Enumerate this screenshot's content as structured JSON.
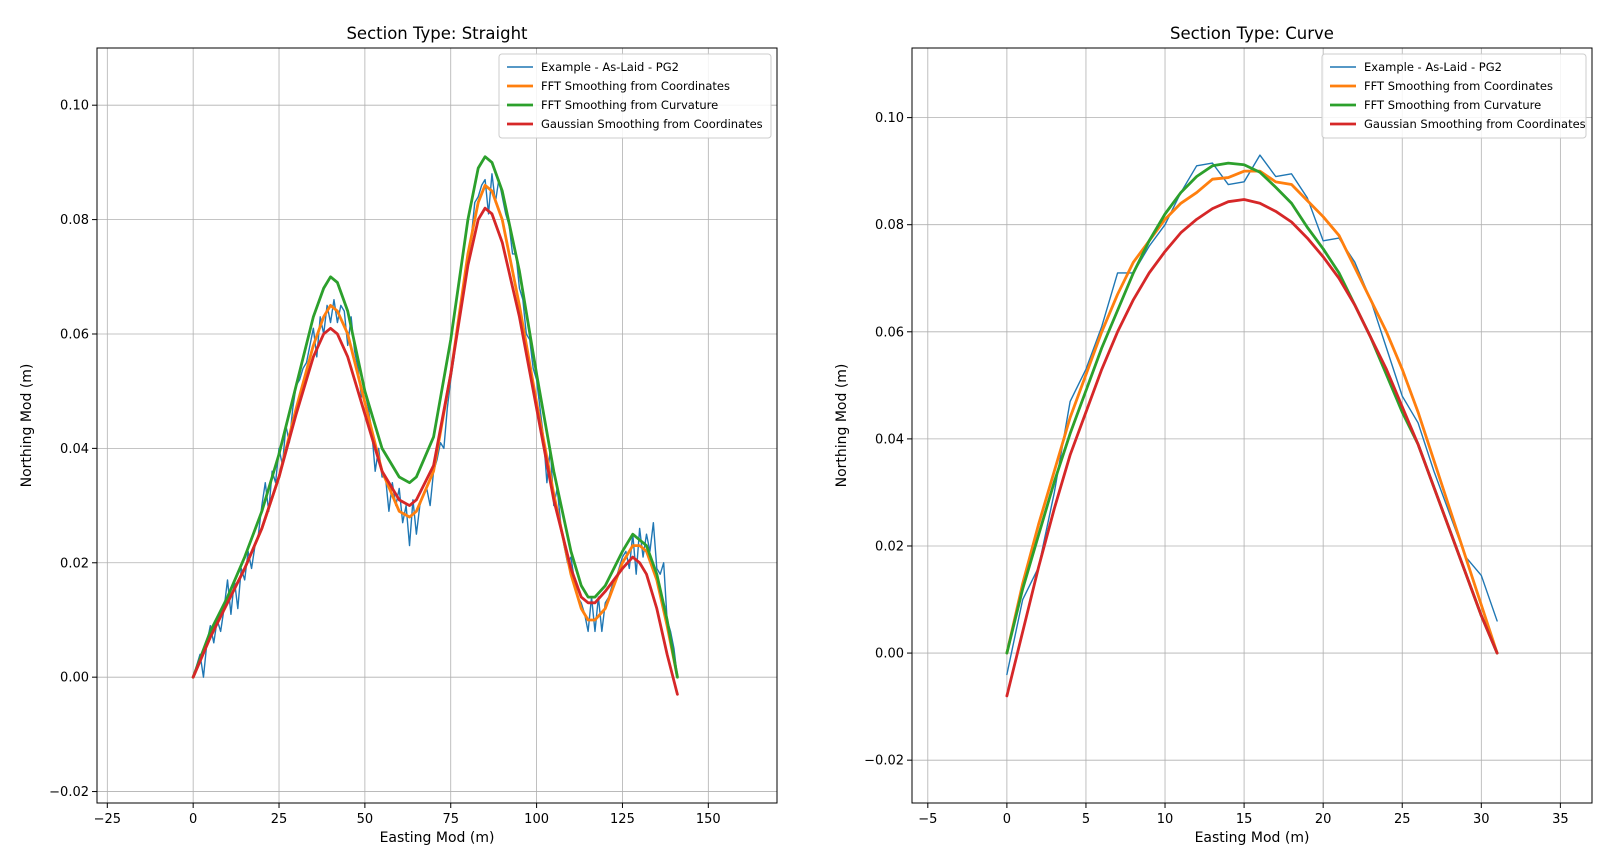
{
  "chart_data": [
    {
      "type": "line",
      "title": "Section Type: Straight",
      "xlabel": "Easting Mod (m)",
      "ylabel": "Northing Mod (m)",
      "xlim": [
        -28,
        170
      ],
      "ylim": [
        -0.022,
        0.11
      ],
      "xticks": [
        -25,
        0,
        25,
        50,
        75,
        100,
        125,
        150
      ],
      "xtick_labels": [
        "−25",
        "0",
        "25",
        "50",
        "75",
        "100",
        "125",
        "150"
      ],
      "yticks": [
        -0.02,
        0.0,
        0.02,
        0.04,
        0.06,
        0.08,
        0.1
      ],
      "ytick_labels": [
        "−0.02",
        "0.00",
        "0.02",
        "0.04",
        "0.06",
        "0.08",
        "0.10"
      ],
      "grid": true,
      "legend_position": "top-right",
      "series": [
        {
          "name": "Example - As-Laid - PG2",
          "color": "#1f77b4",
          "width": 1,
          "x": [
            0,
            2,
            3,
            4,
            5,
            6,
            7,
            8,
            9,
            10,
            11,
            12,
            13,
            14,
            15,
            16,
            17,
            18,
            19,
            20,
            21,
            22,
            23,
            24,
            25,
            26,
            27,
            28,
            29,
            30,
            31,
            32,
            33,
            34,
            35,
            36,
            37,
            38,
            39,
            40,
            41,
            42,
            43,
            44,
            45,
            46,
            47,
            48,
            49,
            50,
            51,
            52,
            53,
            54,
            55,
            56,
            57,
            58,
            59,
            60,
            61,
            62,
            63,
            64,
            65,
            66,
            67,
            68,
            69,
            70,
            71,
            72,
            73,
            74,
            75,
            76,
            77,
            78,
            79,
            80,
            81,
            82,
            83,
            84,
            85,
            86,
            87,
            88,
            89,
            90,
            91,
            92,
            93,
            94,
            95,
            96,
            97,
            98,
            99,
            100,
            101,
            102,
            103,
            104,
            105,
            106,
            107,
            108,
            109,
            110,
            111,
            112,
            113,
            114,
            115,
            116,
            117,
            118,
            119,
            120,
            121,
            122,
            123,
            124,
            125,
            126,
            127,
            128,
            129,
            130,
            131,
            132,
            133,
            134,
            135,
            136,
            137,
            138,
            139,
            140,
            141
          ],
          "y": [
            0.0,
            0.004,
            0.0,
            0.006,
            0.009,
            0.006,
            0.01,
            0.008,
            0.012,
            0.017,
            0.011,
            0.017,
            0.012,
            0.019,
            0.017,
            0.022,
            0.019,
            0.023,
            0.025,
            0.03,
            0.034,
            0.029,
            0.036,
            0.034,
            0.04,
            0.037,
            0.044,
            0.041,
            0.047,
            0.051,
            0.052,
            0.054,
            0.055,
            0.058,
            0.061,
            0.056,
            0.063,
            0.06,
            0.065,
            0.062,
            0.066,
            0.062,
            0.065,
            0.064,
            0.058,
            0.063,
            0.057,
            0.054,
            0.049,
            0.05,
            0.047,
            0.043,
            0.036,
            0.04,
            0.035,
            0.035,
            0.029,
            0.034,
            0.03,
            0.033,
            0.027,
            0.03,
            0.023,
            0.031,
            0.025,
            0.03,
            0.032,
            0.033,
            0.03,
            0.036,
            0.038,
            0.041,
            0.04,
            0.047,
            0.052,
            0.056,
            0.062,
            0.066,
            0.069,
            0.073,
            0.077,
            0.083,
            0.084,
            0.086,
            0.087,
            0.081,
            0.088,
            0.083,
            0.087,
            0.084,
            0.081,
            0.079,
            0.074,
            0.074,
            0.068,
            0.066,
            0.06,
            0.059,
            0.054,
            0.052,
            0.047,
            0.042,
            0.034,
            0.04,
            0.03,
            0.033,
            0.027,
            0.023,
            0.02,
            0.021,
            0.017,
            0.014,
            0.013,
            0.011,
            0.008,
            0.014,
            0.008,
            0.014,
            0.008,
            0.013,
            0.014,
            0.016,
            0.017,
            0.019,
            0.021,
            0.022,
            0.019,
            0.025,
            0.018,
            0.026,
            0.021,
            0.025,
            0.022,
            0.027,
            0.019,
            0.018,
            0.02,
            0.01,
            0.008,
            0.005,
            0.0
          ]
        },
        {
          "name": "FFT Smoothing from Coordinates",
          "color": "#ff7f0e",
          "width": 2,
          "x": [
            0,
            5,
            10,
            15,
            20,
            25,
            30,
            35,
            38,
            40,
            42,
            45,
            50,
            55,
            60,
            63,
            65,
            70,
            75,
            80,
            83,
            85,
            87,
            90,
            95,
            100,
            105,
            110,
            113,
            115,
            117,
            120,
            125,
            128,
            130,
            132,
            135,
            138,
            141
          ],
          "y": [
            0.0,
            0.007,
            0.013,
            0.019,
            0.026,
            0.035,
            0.047,
            0.058,
            0.063,
            0.065,
            0.064,
            0.06,
            0.048,
            0.036,
            0.029,
            0.028,
            0.029,
            0.036,
            0.053,
            0.074,
            0.083,
            0.086,
            0.085,
            0.08,
            0.065,
            0.048,
            0.032,
            0.018,
            0.012,
            0.01,
            0.01,
            0.012,
            0.02,
            0.023,
            0.023,
            0.022,
            0.017,
            0.009,
            0.0
          ]
        },
        {
          "name": "FFT Smoothing from Curvature",
          "color": "#2ca02c",
          "width": 2,
          "x": [
            0,
            5,
            10,
            15,
            20,
            25,
            30,
            35,
            38,
            40,
            42,
            45,
            50,
            55,
            60,
            63,
            65,
            70,
            75,
            80,
            83,
            85,
            87,
            90,
            95,
            100,
            105,
            110,
            113,
            115,
            117,
            120,
            125,
            128,
            130,
            132,
            135,
            138,
            141
          ],
          "y": [
            0.0,
            0.008,
            0.014,
            0.021,
            0.029,
            0.039,
            0.051,
            0.063,
            0.068,
            0.07,
            0.069,
            0.064,
            0.05,
            0.04,
            0.035,
            0.034,
            0.035,
            0.042,
            0.059,
            0.08,
            0.089,
            0.091,
            0.09,
            0.085,
            0.071,
            0.053,
            0.036,
            0.022,
            0.016,
            0.014,
            0.014,
            0.016,
            0.022,
            0.025,
            0.024,
            0.023,
            0.018,
            0.01,
            0.0
          ]
        },
        {
          "name": "Gaussian Smoothing from Coordinates",
          "color": "#d62728",
          "width": 2,
          "x": [
            0,
            5,
            10,
            15,
            20,
            25,
            30,
            35,
            38,
            40,
            42,
            45,
            50,
            55,
            60,
            63,
            65,
            70,
            75,
            80,
            83,
            85,
            87,
            90,
            95,
            100,
            105,
            110,
            113,
            115,
            117,
            120,
            125,
            128,
            130,
            132,
            135,
            138,
            141
          ],
          "y": [
            0.0,
            0.007,
            0.013,
            0.019,
            0.026,
            0.035,
            0.046,
            0.056,
            0.06,
            0.061,
            0.06,
            0.056,
            0.046,
            0.036,
            0.031,
            0.03,
            0.031,
            0.037,
            0.053,
            0.072,
            0.08,
            0.082,
            0.081,
            0.076,
            0.063,
            0.047,
            0.031,
            0.019,
            0.014,
            0.013,
            0.013,
            0.015,
            0.019,
            0.021,
            0.02,
            0.018,
            0.012,
            0.004,
            -0.003
          ]
        }
      ]
    },
    {
      "type": "line",
      "title": "Section Type: Curve",
      "xlabel": "Easting Mod (m)",
      "ylabel": "Northing Mod (m)",
      "xlim": [
        -6,
        37
      ],
      "ylim": [
        -0.028,
        0.113
      ],
      "xticks": [
        -5,
        0,
        5,
        10,
        15,
        20,
        25,
        30,
        35
      ],
      "xtick_labels": [
        "−5",
        "0",
        "5",
        "10",
        "15",
        "20",
        "25",
        "30",
        "35"
      ],
      "yticks": [
        -0.02,
        0.0,
        0.02,
        0.04,
        0.06,
        0.08,
        0.1
      ],
      "ytick_labels": [
        "−0.02",
        "0.00",
        "0.02",
        "0.04",
        "0.06",
        "0.08",
        "0.10"
      ],
      "grid": true,
      "legend_position": "top-right",
      "series": [
        {
          "name": "Example - As-Laid - PG2",
          "color": "#1f77b4",
          "width": 1,
          "x": [
            0,
            1,
            2,
            3,
            4,
            5,
            6,
            7,
            8,
            9,
            10,
            11,
            12,
            13,
            14,
            15,
            16,
            17,
            18,
            19,
            20,
            21,
            22,
            23,
            24,
            25,
            26,
            27,
            28,
            29,
            30,
            31
          ],
          "y": [
            -0.004,
            0.01,
            0.016,
            0.03,
            0.047,
            0.053,
            0.061,
            0.071,
            0.071,
            0.076,
            0.08,
            0.086,
            0.091,
            0.0915,
            0.0875,
            0.088,
            0.093,
            0.089,
            0.0895,
            0.085,
            0.077,
            0.0775,
            0.073,
            0.066,
            0.057,
            0.048,
            0.043,
            0.034,
            0.026,
            0.018,
            0.0145,
            0.006
          ]
        },
        {
          "name": "FFT Smoothing from Coordinates",
          "color": "#ff7f0e",
          "width": 2,
          "x": [
            0,
            1,
            2,
            3,
            4,
            5,
            6,
            7,
            8,
            9,
            10,
            11,
            12,
            13,
            14,
            15,
            16,
            17,
            18,
            19,
            20,
            21,
            22,
            23,
            24,
            25,
            26,
            27,
            28,
            29,
            30,
            31
          ],
          "y": [
            0.0,
            0.013,
            0.024,
            0.034,
            0.044,
            0.052,
            0.06,
            0.067,
            0.073,
            0.077,
            0.081,
            0.084,
            0.086,
            0.0885,
            0.0888,
            0.09,
            0.09,
            0.088,
            0.0875,
            0.0845,
            0.0815,
            0.078,
            0.072,
            0.066,
            0.06,
            0.053,
            0.045,
            0.036,
            0.027,
            0.018,
            0.009,
            0.0
          ]
        },
        {
          "name": "FFT Smoothing from Curvature",
          "color": "#2ca02c",
          "width": 2,
          "x": [
            0,
            1,
            2,
            3,
            4,
            5,
            6,
            7,
            8,
            9,
            10,
            11,
            12,
            13,
            14,
            15,
            16,
            17,
            18,
            19,
            20,
            21,
            22,
            23,
            24,
            25,
            26,
            27,
            28,
            29,
            30,
            31
          ],
          "y": [
            0.0,
            0.012,
            0.022,
            0.032,
            0.041,
            0.049,
            0.057,
            0.064,
            0.071,
            0.077,
            0.082,
            0.086,
            0.089,
            0.091,
            0.0915,
            0.0912,
            0.0898,
            0.087,
            0.084,
            0.0795,
            0.0755,
            0.071,
            0.065,
            0.059,
            0.052,
            0.045,
            0.039,
            0.031,
            0.023,
            0.015,
            0.007,
            0.0
          ]
        },
        {
          "name": "Gaussian Smoothing from Coordinates",
          "color": "#d62728",
          "width": 2,
          "x": [
            0,
            1,
            2,
            3,
            4,
            5,
            6,
            7,
            8,
            9,
            10,
            11,
            12,
            13,
            14,
            15,
            16,
            17,
            18,
            19,
            20,
            21,
            22,
            23,
            24,
            25,
            26,
            27,
            28,
            29,
            30,
            31
          ],
          "y": [
            -0.008,
            0.004,
            0.016,
            0.027,
            0.037,
            0.045,
            0.053,
            0.06,
            0.066,
            0.071,
            0.075,
            0.0785,
            0.081,
            0.083,
            0.0843,
            0.0847,
            0.084,
            0.0825,
            0.0805,
            0.0775,
            0.074,
            0.07,
            0.065,
            0.059,
            0.053,
            0.046,
            0.039,
            0.031,
            0.023,
            0.015,
            0.007,
            0.0
          ]
        }
      ]
    }
  ]
}
